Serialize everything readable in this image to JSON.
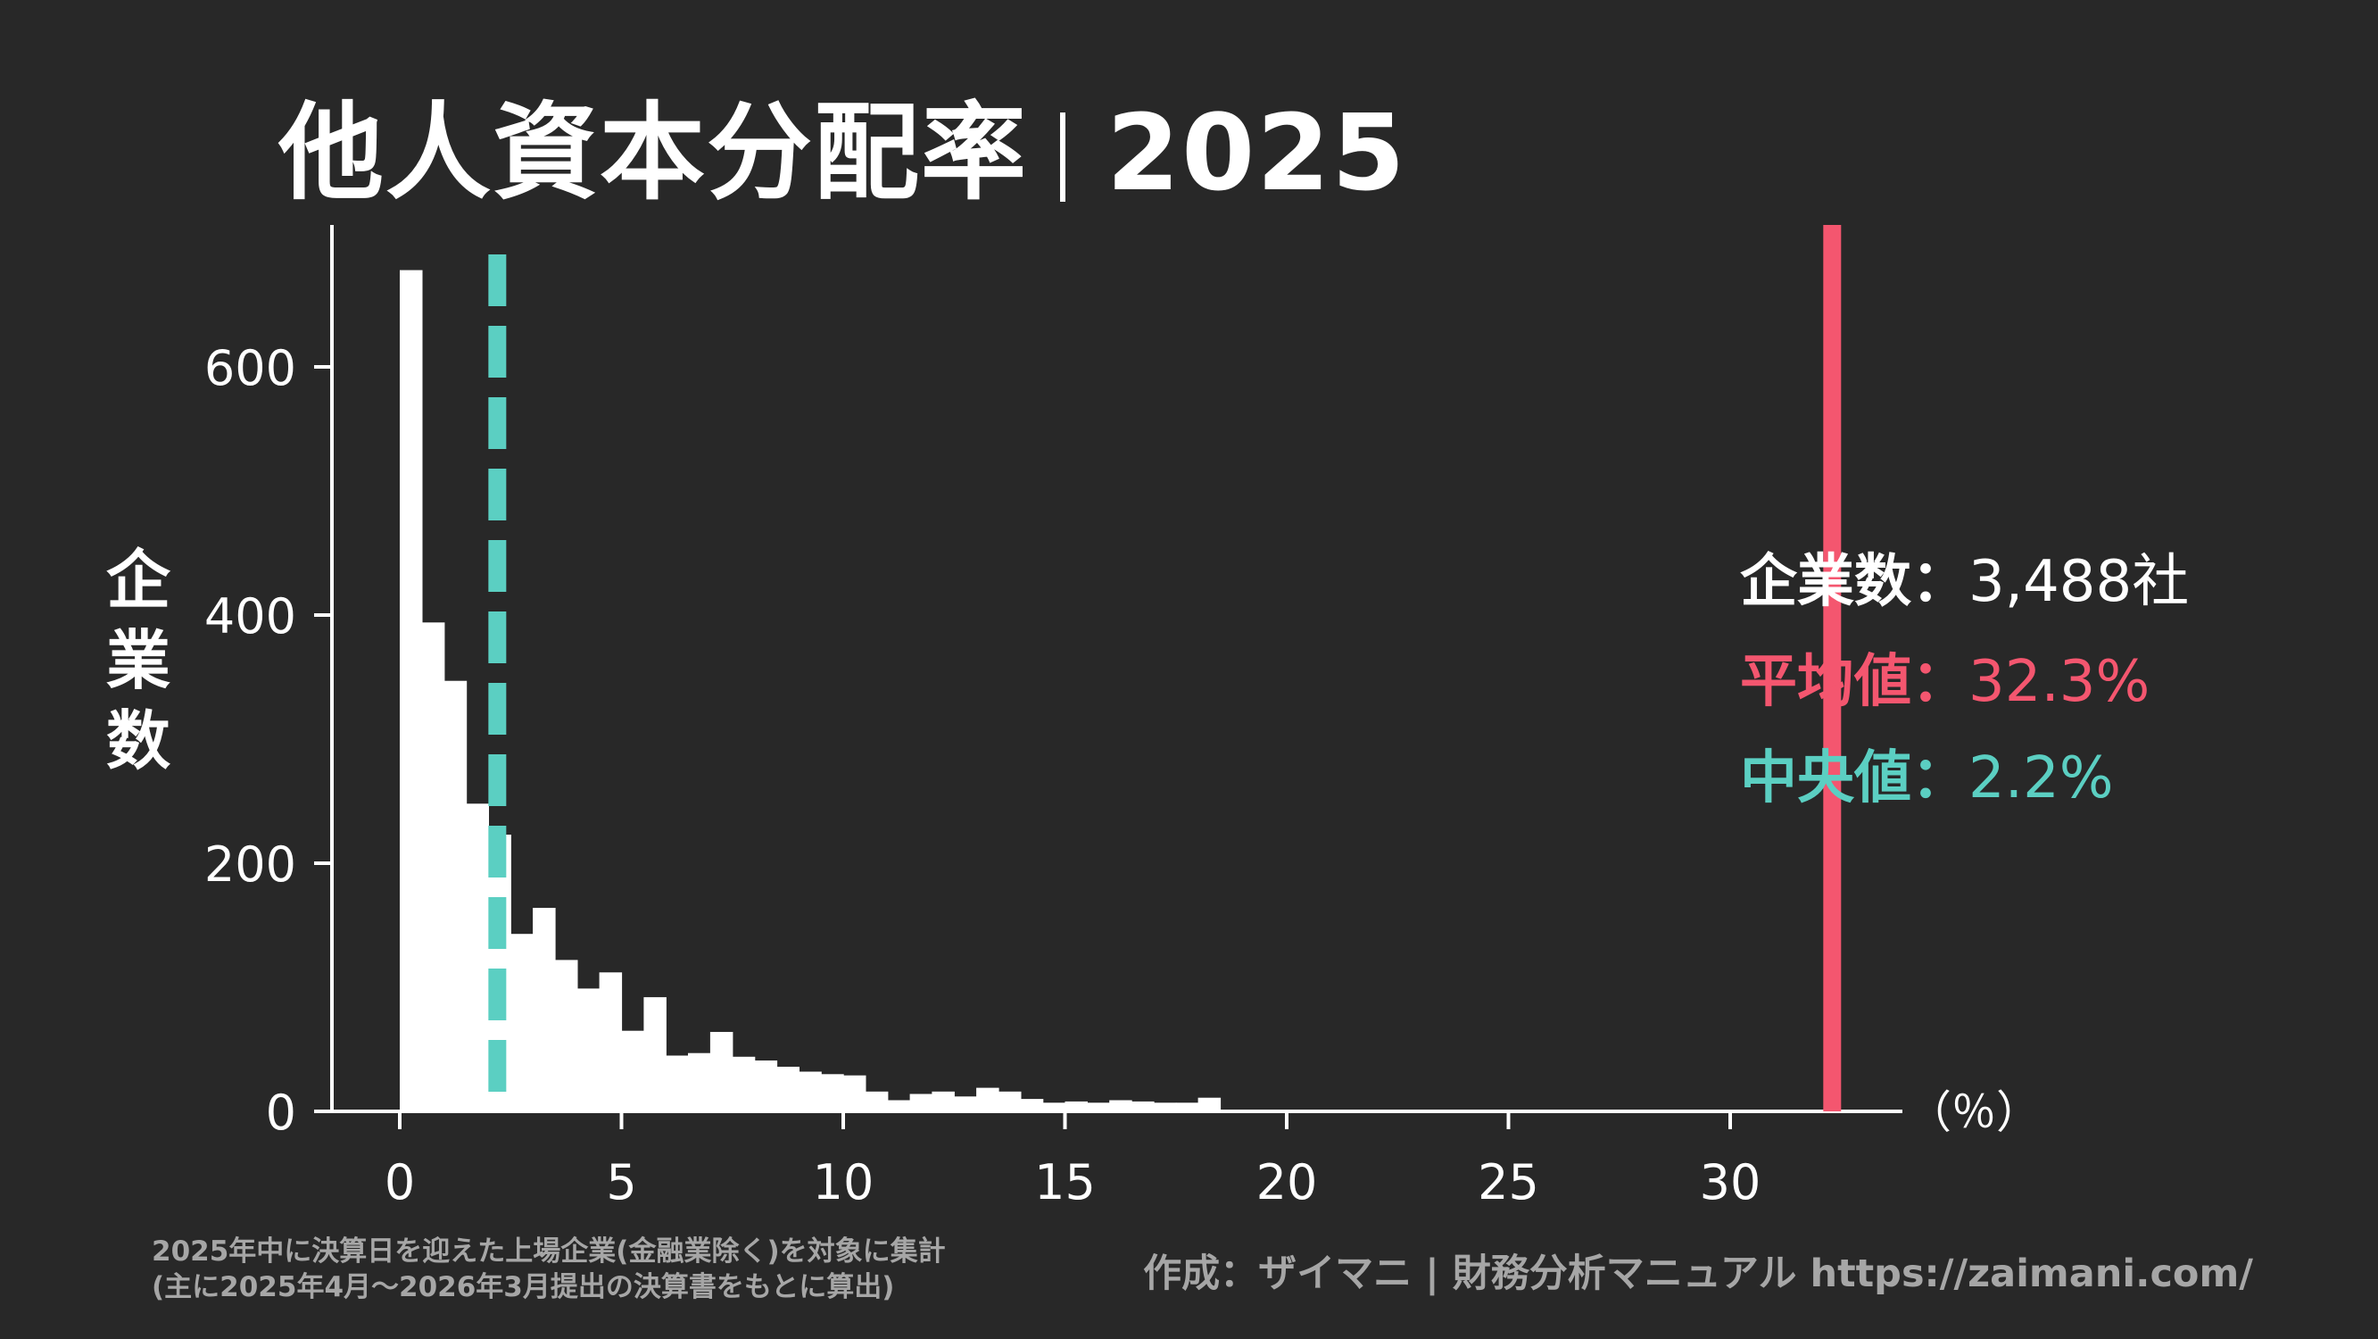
{
  "title": {
    "main": "他人資本分配率",
    "year": "2025"
  },
  "chart_data": {
    "type": "bar",
    "xlabel": "（％）",
    "ylabel": "企業数",
    "xlim": [
      -2,
      34
    ],
    "ylim": [
      0,
      710
    ],
    "xticks": [
      0,
      5,
      10,
      15,
      20,
      25,
      30
    ],
    "yticks": [
      0,
      200,
      400,
      600
    ],
    "bin_width": 0.5,
    "bin_starts": [
      0,
      0.5,
      1,
      1.5,
      2,
      2.5,
      3,
      3.5,
      4,
      4.5,
      5,
      5.5,
      6,
      6.5,
      7,
      7.5,
      8,
      8.5,
      9,
      9.5,
      10,
      10.5,
      11,
      11.5,
      12,
      12.5,
      13,
      13.5,
      14,
      14.5,
      15,
      15.5,
      16,
      16.5,
      17,
      17.5,
      18
    ],
    "values": [
      678,
      394,
      347,
      248,
      223,
      143,
      164,
      122,
      99,
      112,
      65,
      92,
      45,
      47,
      64,
      44,
      41,
      36,
      32,
      30,
      29,
      16,
      9,
      14,
      16,
      12,
      19,
      16,
      10,
      7,
      8,
      7,
      9,
      8,
      7,
      7,
      11
    ],
    "mean": 32.3,
    "median": 2.2,
    "colors": {
      "bars": "#ffffff",
      "mean": "#f4566f",
      "median": "#5bcfc2",
      "axis": "#ffffff",
      "background": "#282828"
    },
    "legend": "right"
  },
  "info": {
    "count_label": "企業数：",
    "count_value": "3,488社",
    "mean_label": "平均値：",
    "mean_value": "32.3%",
    "median_label": "中央値：",
    "median_value": "2.2%"
  },
  "footer": {
    "note_line1": "2025年中に決算日を迎えた上場企業(金融業除く)を対象に集計",
    "note_line2": "(主に2025年4月〜2026年3月提出の決算書をもとに算出)",
    "credit": "作成：ザイマニ | 財務分析マニュアル https://zaimani.com/"
  }
}
